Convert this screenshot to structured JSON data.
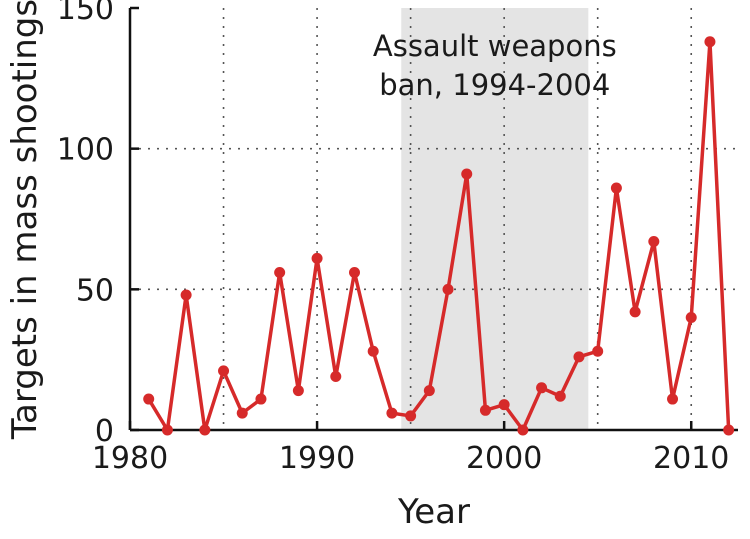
{
  "chart_data": {
    "type": "line",
    "title": "",
    "xlabel": "Year",
    "ylabel": "Targets in mass shootings",
    "xlim": [
      1980,
      2012.5
    ],
    "ylim": [
      0,
      150
    ],
    "xticks": [
      1980,
      1990,
      2000,
      2010
    ],
    "yticks": [
      0,
      50,
      100,
      150
    ],
    "xtick_labels": [
      "1980",
      "1990",
      "2000",
      "2010"
    ],
    "ytick_labels": [
      "0",
      "50",
      "100",
      "150"
    ],
    "grid": true,
    "legend": "none",
    "series": [
      {
        "color": "#d62a2a",
        "x": [
          1981,
          1982,
          1983,
          1984,
          1985,
          1986,
          1987,
          1988,
          1989,
          1990,
          1991,
          1992,
          1993,
          1994,
          1995,
          1996,
          1997,
          1998,
          1999,
          2000,
          2001,
          2002,
          2003,
          2004,
          2005,
          2006,
          2007,
          2008,
          2009,
          2010,
          2011,
          2012
        ],
        "y": [
          11,
          0,
          48,
          0,
          21,
          6,
          11,
          56,
          14,
          61,
          19,
          56,
          28,
          6,
          5,
          14,
          50,
          91,
          7,
          9,
          0,
          15,
          12,
          26,
          28,
          86,
          42,
          67,
          11,
          40,
          138,
          0
        ]
      }
    ],
    "shaded_region": {
      "x_start": 1994.5,
      "x_end": 2004.5,
      "color": "#e4e4e4",
      "label_lines": [
        "Assault weapons",
        "ban, 1994-2004"
      ]
    }
  }
}
